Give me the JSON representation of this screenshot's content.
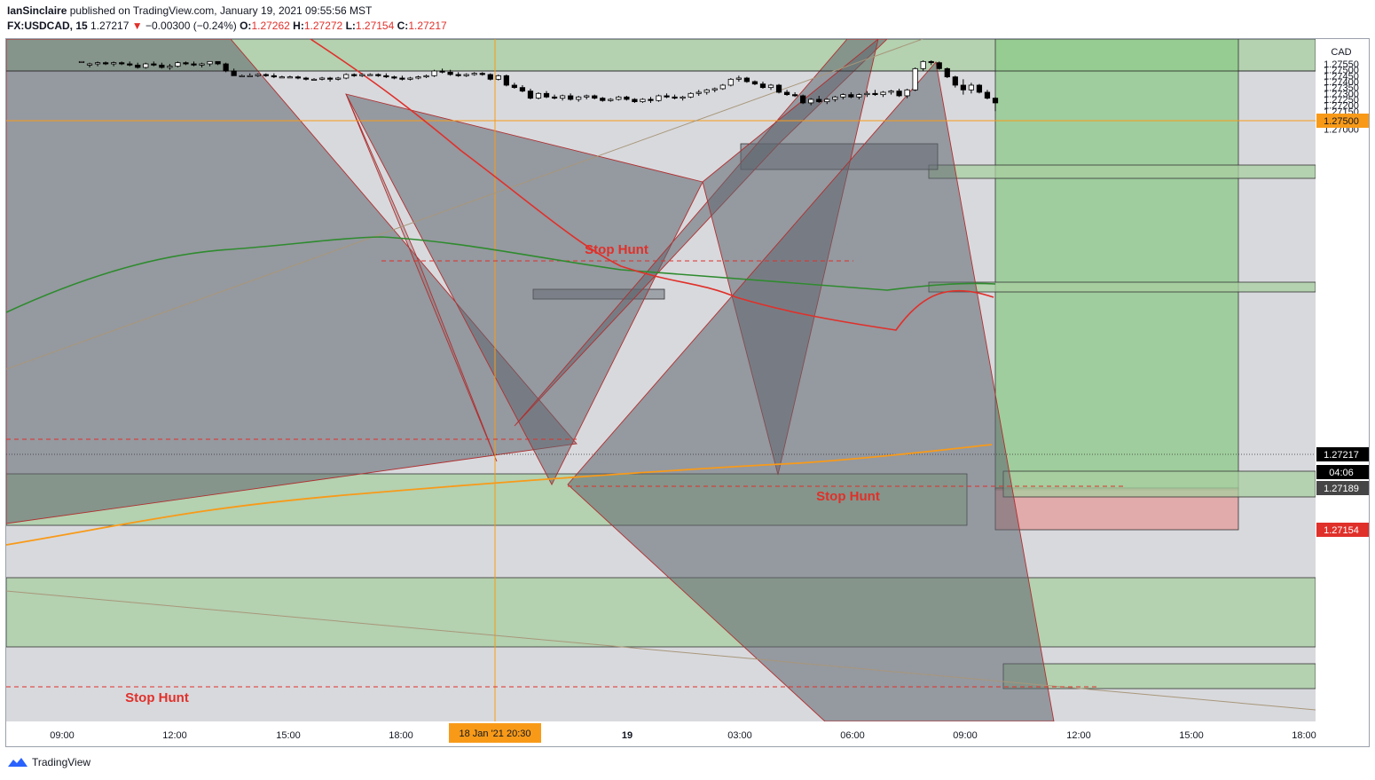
{
  "header": {
    "author": "IanSinclaire",
    "published": "published on TradingView.com, January 19, 2021 09:55:56 MST",
    "symbol": "FX:USDCAD, 15",
    "last": "1.27217",
    "arrow": "▼",
    "change": "−0.00300 (−0.24%)",
    "o_label": "O:",
    "o": "1.27262",
    "h_label": "H:",
    "h": "1.27272",
    "l_label": "L:",
    "l": "1.27154",
    "c_label": "C:",
    "c": "1.27217"
  },
  "footer": {
    "brand": "TradingView",
    "logo_icon": "tradingview-logo-icon"
  },
  "colors": {
    "up": "#ffffff",
    "down": "#000000",
    "accent": "#f89a18",
    "red": "#e0302a"
  },
  "chart_data": {
    "type": "candlestick",
    "currency": "CAD",
    "ylim": [
      1.2697,
      1.2757
    ],
    "y_ticks": [
      "1.27000",
      "1.27050",
      "1.27100",
      "1.27150",
      "1.27200",
      "1.27250",
      "1.27300",
      "1.27350",
      "1.27400",
      "1.27450",
      "1.27500",
      "1.27550"
    ],
    "x_ticks": [
      "09:00",
      "12:00",
      "15:00",
      "18:00",
      "18 Jan '21  20:30",
      "19",
      "03:00",
      "06:00",
      "09:00",
      "12:00",
      "15:00",
      "18:00"
    ],
    "price_labels": {
      "level_line": "1.27500",
      "last": "1.27217",
      "countdown": "04:06",
      "ask": "1.27189",
      "low": "1.27154"
    },
    "annotations": [
      "Stop Hunt",
      "Stop Hunt",
      "Stop Hunt"
    ],
    "candles": [
      [
        1.2757,
        1.2757,
        1.2757,
        1.2757
      ],
      [
        1.2754,
        1.2756,
        1.2752,
        1.2755
      ],
      [
        1.2755,
        1.2757,
        1.2753,
        1.2756
      ],
      [
        1.2756,
        1.2757,
        1.2754,
        1.2755
      ],
      [
        1.2755,
        1.2757,
        1.2753,
        1.2756
      ],
      [
        1.2756,
        1.2757,
        1.2754,
        1.2755
      ],
      [
        1.2755,
        1.2757,
        1.2753,
        1.2754
      ],
      [
        1.2754,
        1.2756,
        1.2751,
        1.2752
      ],
      [
        1.2752,
        1.2756,
        1.2751,
        1.2755
      ],
      [
        1.2755,
        1.2757,
        1.2753,
        1.2754
      ],
      [
        1.2754,
        1.2756,
        1.2751,
        1.2752
      ],
      [
        1.2752,
        1.2755,
        1.275,
        1.2753
      ],
      [
        1.2753,
        1.2757,
        1.2752,
        1.2756
      ],
      [
        1.2756,
        1.2757,
        1.2754,
        1.2755
      ],
      [
        1.2755,
        1.2757,
        1.2753,
        1.2754
      ],
      [
        1.2754,
        1.2756,
        1.2752,
        1.2755
      ],
      [
        1.2755,
        1.2757,
        1.2753,
        1.2757
      ],
      [
        1.2757,
        1.2757,
        1.2754,
        1.2755
      ],
      [
        1.2755,
        1.2756,
        1.2748,
        1.2749
      ],
      [
        1.2749,
        1.2751,
        1.2745,
        1.2745
      ],
      [
        1.2745,
        1.2746,
        1.2744,
        1.2745
      ],
      [
        1.2745,
        1.2747,
        1.2744,
        1.2745
      ],
      [
        1.2745,
        1.2747,
        1.2744,
        1.2746
      ],
      [
        1.2746,
        1.2747,
        1.2744,
        1.2745
      ],
      [
        1.2745,
        1.2747,
        1.2743,
        1.2744
      ],
      [
        1.2744,
        1.2745,
        1.2743,
        1.2744
      ],
      [
        1.2744,
        1.2745,
        1.2743,
        1.2744
      ],
      [
        1.2744,
        1.2745,
        1.2742,
        1.2743
      ],
      [
        1.2743,
        1.2744,
        1.2741,
        1.2742
      ],
      [
        1.2742,
        1.2743,
        1.2741,
        1.2742
      ],
      [
        1.2742,
        1.2744,
        1.2741,
        1.2743
      ],
      [
        1.2743,
        1.2744,
        1.274,
        1.2742
      ],
      [
        1.2742,
        1.2744,
        1.2741,
        1.2743
      ],
      [
        1.2743,
        1.2747,
        1.2742,
        1.2746
      ],
      [
        1.2746,
        1.2747,
        1.2744,
        1.2745
      ],
      [
        1.2745,
        1.2747,
        1.2744,
        1.2746
      ],
      [
        1.2746,
        1.2747,
        1.2745,
        1.2746
      ],
      [
        1.2746,
        1.2747,
        1.2744,
        1.2745
      ],
      [
        1.2745,
        1.2747,
        1.2743,
        1.2744
      ],
      [
        1.2744,
        1.2745,
        1.2742,
        1.2743
      ],
      [
        1.2743,
        1.2745,
        1.2741,
        1.2742
      ],
      [
        1.2742,
        1.2744,
        1.2741,
        1.2743
      ],
      [
        1.2743,
        1.2745,
        1.2742,
        1.2744
      ],
      [
        1.2744,
        1.2746,
        1.2743,
        1.2745
      ],
      [
        1.2745,
        1.275,
        1.2744,
        1.2749
      ],
      [
        1.2749,
        1.2751,
        1.2747,
        1.2748
      ],
      [
        1.2748,
        1.275,
        1.2745,
        1.2746
      ],
      [
        1.2746,
        1.2748,
        1.2744,
        1.2745
      ],
      [
        1.2745,
        1.2747,
        1.2744,
        1.2746
      ],
      [
        1.2746,
        1.2748,
        1.2745,
        1.2747
      ],
      [
        1.2747,
        1.2748,
        1.2745,
        1.2746
      ],
      [
        1.2746,
        1.2747,
        1.2741,
        1.2742
      ],
      [
        1.2742,
        1.2746,
        1.2741,
        1.2745
      ],
      [
        1.2745,
        1.2746,
        1.2736,
        1.2737
      ],
      [
        1.2737,
        1.2739,
        1.2734,
        1.2735
      ],
      [
        1.2735,
        1.2737,
        1.2731,
        1.2732
      ],
      [
        1.2732,
        1.2734,
        1.2725,
        1.2726
      ],
      [
        1.2726,
        1.2731,
        1.2725,
        1.273
      ],
      [
        1.273,
        1.2732,
        1.2726,
        1.2727
      ],
      [
        1.2727,
        1.2729,
        1.2725,
        1.2726
      ],
      [
        1.2726,
        1.2729,
        1.2724,
        1.2728
      ],
      [
        1.2728,
        1.273,
        1.2724,
        1.2725
      ],
      [
        1.2725,
        1.2728,
        1.2723,
        1.2727
      ],
      [
        1.2727,
        1.2729,
        1.2725,
        1.2728
      ],
      [
        1.2728,
        1.2729,
        1.2725,
        1.2726
      ],
      [
        1.2726,
        1.2727,
        1.2723,
        1.2724
      ],
      [
        1.2724,
        1.2726,
        1.2723,
        1.2725
      ],
      [
        1.2725,
        1.2728,
        1.2724,
        1.2727
      ],
      [
        1.2727,
        1.2728,
        1.2724,
        1.2725
      ],
      [
        1.2725,
        1.2726,
        1.2722,
        1.2723
      ],
      [
        1.2723,
        1.2726,
        1.2722,
        1.2725
      ],
      [
        1.2725,
        1.2727,
        1.2722,
        1.2724
      ],
      [
        1.2724,
        1.2729,
        1.2723,
        1.2728
      ],
      [
        1.2728,
        1.273,
        1.2726,
        1.2727
      ],
      [
        1.2727,
        1.2729,
        1.2725,
        1.2726
      ],
      [
        1.2726,
        1.2728,
        1.2724,
        1.2727
      ],
      [
        1.2727,
        1.2731,
        1.2726,
        1.273
      ],
      [
        1.273,
        1.2733,
        1.2728,
        1.2731
      ],
      [
        1.2731,
        1.2734,
        1.2729,
        1.2733
      ],
      [
        1.2733,
        1.2735,
        1.2731,
        1.2734
      ],
      [
        1.2734,
        1.2738,
        1.2733,
        1.2737
      ],
      [
        1.2737,
        1.2743,
        1.2736,
        1.2742
      ],
      [
        1.2742,
        1.2745,
        1.274,
        1.2743
      ],
      [
        1.2743,
        1.2744,
        1.2739,
        1.274
      ],
      [
        1.274,
        1.2741,
        1.2737,
        1.2738
      ],
      [
        1.2738,
        1.274,
        1.2734,
        1.2735
      ],
      [
        1.2735,
        1.2738,
        1.2733,
        1.2737
      ],
      [
        1.2737,
        1.2738,
        1.273,
        1.2731
      ],
      [
        1.2731,
        1.2733,
        1.2728,
        1.2729
      ],
      [
        1.2729,
        1.2731,
        1.2727,
        1.2728
      ],
      [
        1.2728,
        1.2729,
        1.2721,
        1.2722
      ],
      [
        1.2722,
        1.2726,
        1.272,
        1.2725
      ],
      [
        1.2725,
        1.2728,
        1.2722,
        1.2723
      ],
      [
        1.2723,
        1.2726,
        1.2721,
        1.2725
      ],
      [
        1.2725,
        1.2728,
        1.2723,
        1.2727
      ],
      [
        1.2727,
        1.273,
        1.2725,
        1.2729
      ],
      [
        1.2729,
        1.2731,
        1.2726,
        1.2727
      ],
      [
        1.2727,
        1.273,
        1.2725,
        1.2729
      ],
      [
        1.2729,
        1.2732,
        1.2727,
        1.273
      ],
      [
        1.273,
        1.2733,
        1.2728,
        1.2729
      ],
      [
        1.2729,
        1.2732,
        1.2727,
        1.2731
      ],
      [
        1.2731,
        1.2733,
        1.2729,
        1.2732
      ],
      [
        1.2732,
        1.2734,
        1.2727,
        1.2728
      ],
      [
        1.2728,
        1.2734,
        1.2726,
        1.2733
      ],
      [
        1.2733,
        1.2752,
        1.2732,
        1.2751
      ],
      [
        1.2751,
        1.2758,
        1.2749,
        1.2757
      ],
      [
        1.2757,
        1.2758,
        1.2754,
        1.2756
      ],
      [
        1.2756,
        1.2757,
        1.275,
        1.2751
      ],
      [
        1.2751,
        1.2752,
        1.2743,
        1.2744
      ],
      [
        1.2744,
        1.2745,
        1.2735,
        1.2737
      ],
      [
        1.2737,
        1.2742,
        1.2729,
        1.2733
      ],
      [
        1.2733,
        1.2739,
        1.273,
        1.2737
      ],
      [
        1.2737,
        1.2738,
        1.273,
        1.2731
      ],
      [
        1.2731,
        1.2733,
        1.2725,
        1.2726
      ],
      [
        1.2726,
        1.2727,
        1.2715,
        1.2722
      ]
    ]
  }
}
